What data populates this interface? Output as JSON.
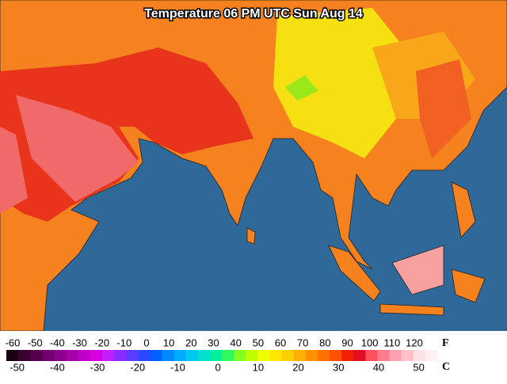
{
  "title": "Temperature 06 PM UTC Sun Aug 14",
  "legend": {
    "f_unit": "F",
    "c_unit": "C",
    "f_ticks": [
      -60,
      -50,
      -40,
      -30,
      -20,
      -10,
      0,
      10,
      20,
      30,
      40,
      50,
      60,
      70,
      80,
      90,
      100,
      110,
      120
    ],
    "c_ticks": [
      -50,
      -40,
      -30,
      -20,
      -10,
      0,
      10,
      20,
      30,
      40,
      50
    ],
    "colors": [
      "#1a0010",
      "#3a0030",
      "#55004f",
      "#70006e",
      "#8a008c",
      "#a400aa",
      "#bf00c8",
      "#d400e0",
      "#c020ff",
      "#8a2cff",
      "#5a3cff",
      "#2c48ff",
      "#0060ff",
      "#0088ff",
      "#00aaff",
      "#00c8f0",
      "#00e0d0",
      "#00f0a0",
      "#30f860",
      "#80ff20",
      "#c0ff00",
      "#f0ff00",
      "#ffe800",
      "#ffd000",
      "#ffb000",
      "#ff9000",
      "#ff7000",
      "#ff5000",
      "#f02000",
      "#e01020",
      "#ff5060",
      "#ff7a8a",
      "#ffa0b0",
      "#ffc0c8",
      "#ffe0e4",
      "#fff0f2"
    ]
  }
}
